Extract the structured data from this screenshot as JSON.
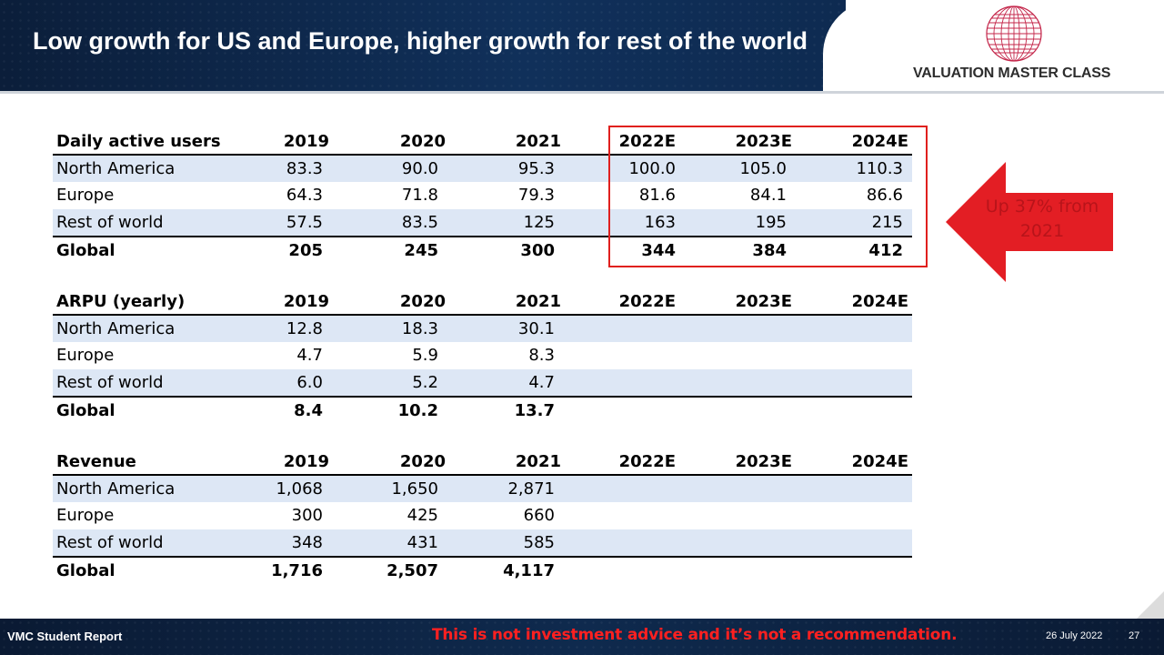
{
  "header": {
    "title": "Low growth for US and Europe, higher growth for rest of the world",
    "logo_text": "VALUATION MASTER CLASS",
    "logo_icon": "globe-icon"
  },
  "tables": [
    {
      "header": [
        "Daily active users",
        "2019",
        "2020",
        "2021",
        "2022E",
        "2023E",
        "2024E"
      ],
      "rows": [
        [
          "North America",
          "83.3",
          "90.0",
          "95.3",
          "100.0",
          "105.0",
          "110.3"
        ],
        [
          "Europe",
          "64.3",
          "71.8",
          "79.3",
          "81.6",
          "84.1",
          "86.6"
        ],
        [
          "Rest of world",
          "57.5",
          "83.5",
          "125",
          "163",
          "195",
          "215"
        ]
      ],
      "total": [
        "Global",
        "205",
        "245",
        "300",
        "344",
        "384",
        "412"
      ]
    },
    {
      "header": [
        "ARPU (yearly)",
        "2019",
        "2020",
        "2021",
        "2022E",
        "2023E",
        "2024E"
      ],
      "rows": [
        [
          "North America",
          "12.8",
          "18.3",
          "30.1",
          "",
          "",
          ""
        ],
        [
          "Europe",
          "4.7",
          "5.9",
          "8.3",
          "",
          "",
          ""
        ],
        [
          "Rest of world",
          "6.0",
          "5.2",
          "4.7",
          "",
          "",
          ""
        ]
      ],
      "total": [
        "Global",
        "8.4",
        "10.2",
        "13.7",
        "",
        "",
        ""
      ]
    },
    {
      "header": [
        "Revenue",
        "2019",
        "2020",
        "2021",
        "2022E",
        "2023E",
        "2024E"
      ],
      "rows": [
        [
          "North America",
          "1,068",
          "1,650",
          "2,871",
          "",
          "",
          ""
        ],
        [
          "Europe",
          "300",
          "425",
          "660",
          "",
          "",
          ""
        ],
        [
          "Rest of world",
          "348",
          "431",
          "585",
          "",
          "",
          ""
        ]
      ],
      "total": [
        "Global",
        "1,716",
        "2,507",
        "4,117",
        "",
        "",
        ""
      ]
    }
  ],
  "callout": {
    "text_line1": "Up 37% from",
    "text_line2": "2021",
    "color": "#e31e24"
  },
  "highlight_color": "#e0201e",
  "footer": {
    "left": "VMC Student Report",
    "disclaimer": "This is not investment advice and it’s not a recommendation.",
    "date": "26 July 2022",
    "page": "27"
  }
}
